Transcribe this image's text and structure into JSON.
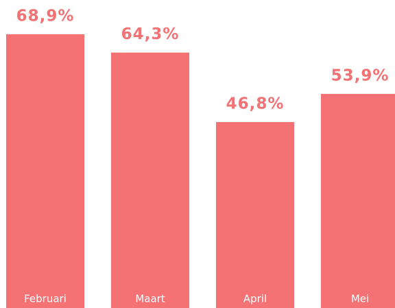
{
  "chart_data": {
    "type": "bar",
    "categories": [
      "Februari",
      "Maart",
      "April",
      "Mei"
    ],
    "values": [
      68.9,
      64.3,
      46.8,
      53.9
    ],
    "value_labels": [
      "68,9%",
      "64,3%",
      "46,8%",
      "53,9%"
    ],
    "color": "#f47174"
  }
}
